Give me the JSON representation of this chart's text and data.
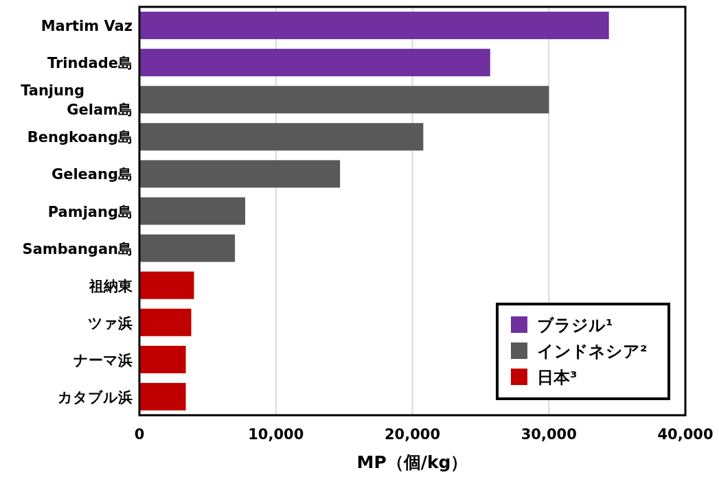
{
  "chart_data": {
    "type": "bar",
    "orientation": "horizontal",
    "xlabel": "MP（個/kg）",
    "categories": [
      "Martim Vaz",
      "Trindade島",
      "Tanjung Gelam島",
      "Bengkoang島",
      "Geleang島",
      "Pamjang島",
      "Sambangan島",
      "祖納東",
      "ツァ浜",
      "ナーマ浜",
      "カタブル浜"
    ],
    "series": [
      {
        "name": "ブラジル¹",
        "color": "#7030a0",
        "values": [
          34400,
          25700,
          null,
          null,
          null,
          null,
          null,
          null,
          null,
          null,
          null
        ]
      },
      {
        "name": "インドネシア²",
        "color": "#595959",
        "values": [
          null,
          null,
          30000,
          20800,
          14700,
          7750,
          7000,
          null,
          null,
          null,
          null
        ]
      },
      {
        "name": "日本³",
        "color": "#c00000",
        "values": [
          null,
          null,
          null,
          null,
          null,
          null,
          null,
          4000,
          3800,
          3400,
          3400
        ]
      }
    ],
    "xlim": [
      0,
      40000
    ],
    "xticks": [
      {
        "value": 0,
        "label": "0"
      },
      {
        "value": 10000,
        "label": "10,000"
      },
      {
        "value": 20000,
        "label": "20,000"
      },
      {
        "value": 30000,
        "label": "30,000"
      },
      {
        "value": 40000,
        "label": "40,000"
      }
    ],
    "grid": "x",
    "legend": "bottom right"
  }
}
